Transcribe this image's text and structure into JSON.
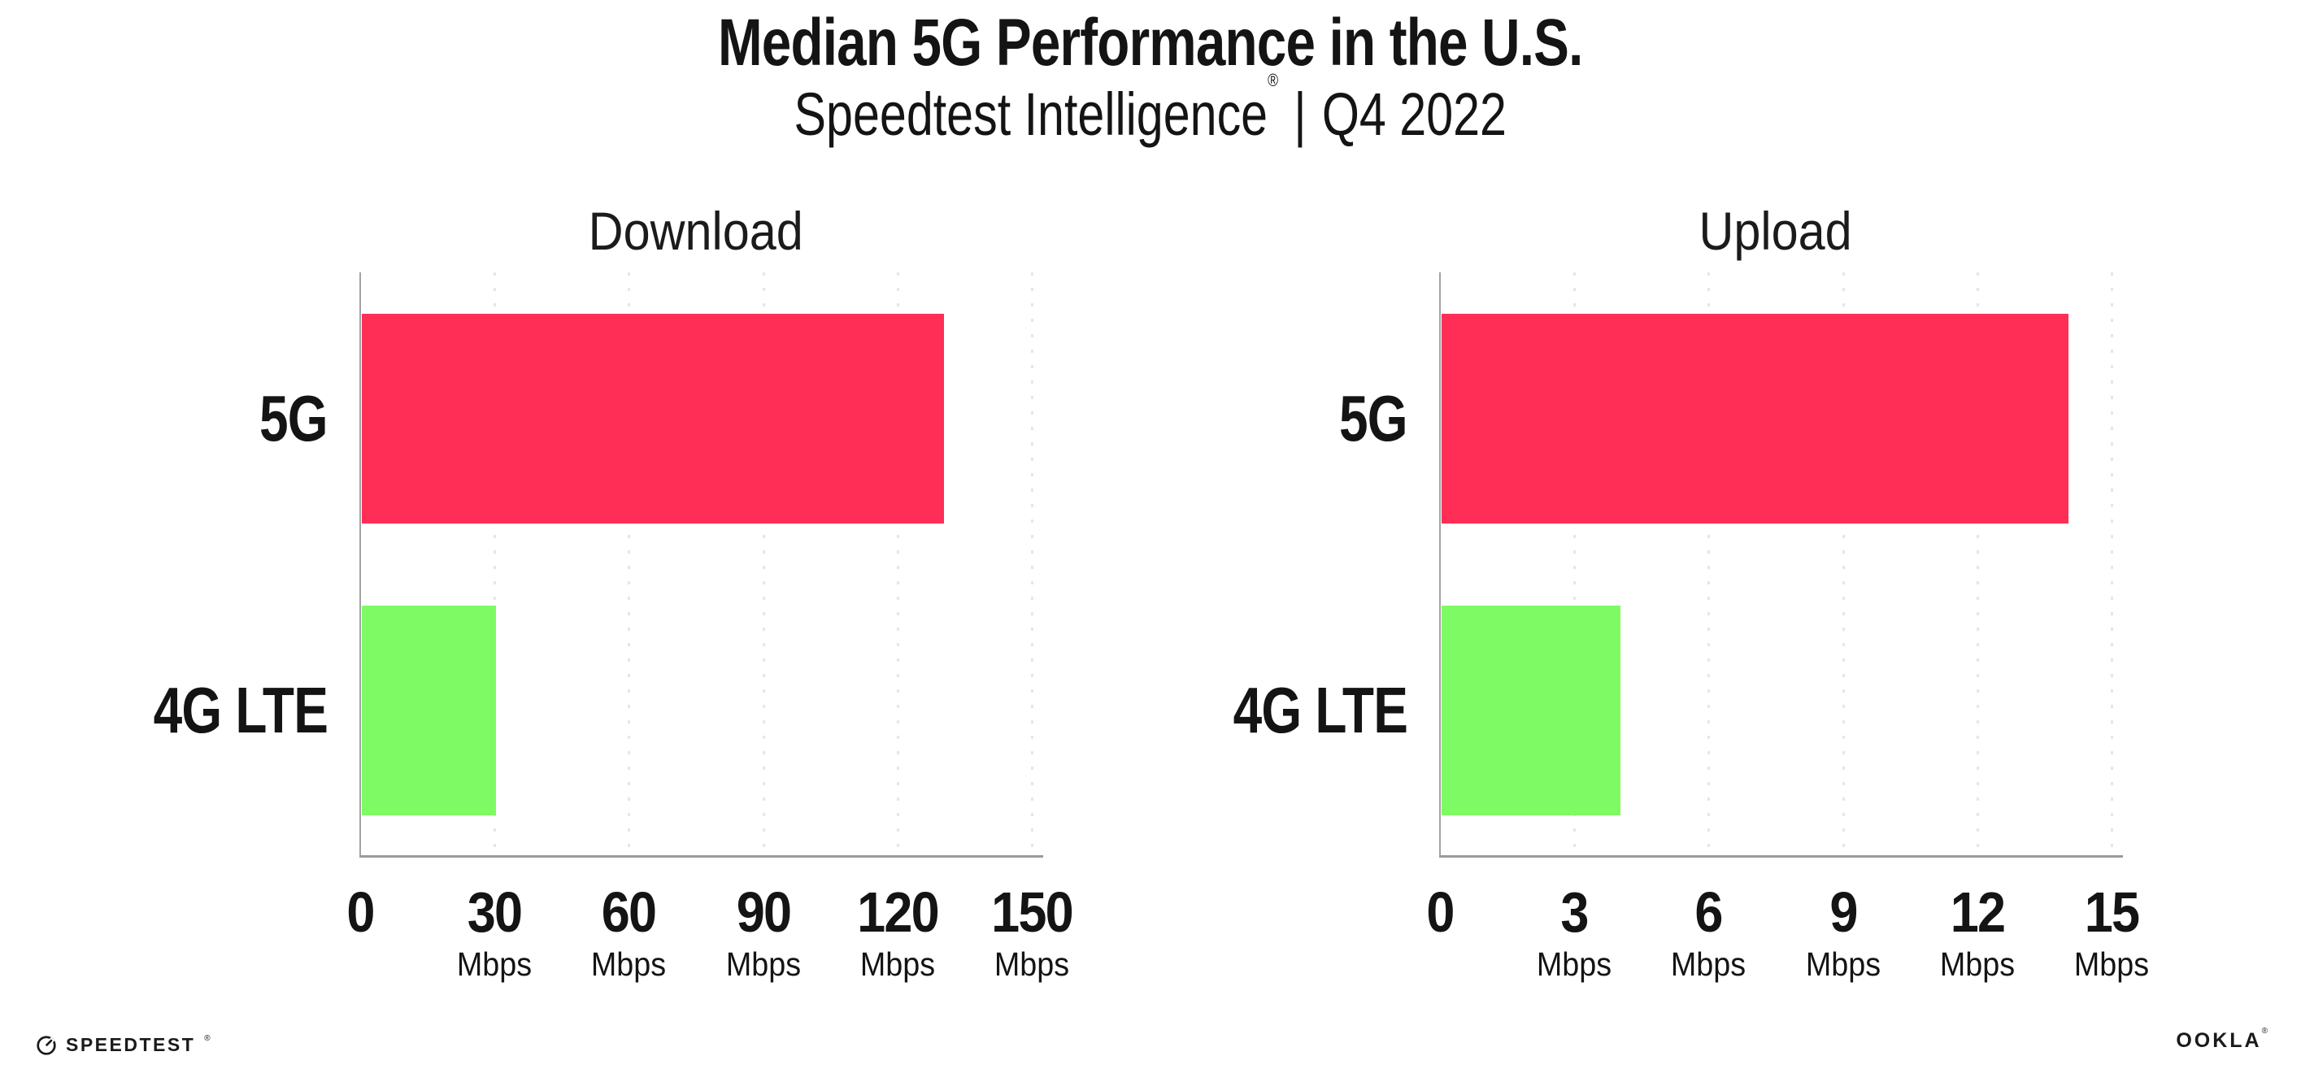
{
  "header": {
    "title": "Median 5G Performance in the U.S.",
    "subtitle_brand": "Speedtest Intelligence",
    "subtitle_reg": "®",
    "subtitle_sep": "|",
    "subtitle_period": "Q4 2022"
  },
  "chart_data": [
    {
      "type": "bar",
      "orientation": "horizontal",
      "title": "Download",
      "categories": [
        "5G",
        "4G LTE"
      ],
      "values": [
        130,
        30
      ],
      "unit": "Mbps",
      "xlim": [
        0,
        150
      ],
      "xticks": [
        0,
        30,
        60,
        90,
        120,
        150
      ],
      "bar_colors": [
        "#FF2E56",
        "#7EFB64"
      ],
      "grid": "vertical-dotted",
      "legend": "none"
    },
    {
      "type": "bar",
      "orientation": "horizontal",
      "title": "Upload",
      "categories": [
        "5G",
        "4G LTE"
      ],
      "values": [
        14,
        4
      ],
      "unit": "Mbps",
      "xlim": [
        0,
        15
      ],
      "xticks": [
        0,
        3,
        6,
        9,
        12,
        15
      ],
      "bar_colors": [
        "#FF2E56",
        "#7EFB64"
      ],
      "grid": "vertical-dotted",
      "legend": "none"
    }
  ],
  "footer": {
    "speedtest_icon": "gauge-icon",
    "speedtest_label": "SPEEDTEST",
    "speedtest_tm": "®",
    "ookla_label": "OOKLA",
    "ookla_reg": "®"
  },
  "colors": {
    "bar_5g": "#FF2E56",
    "bar_4g_lte": "#7EFB64",
    "gridline": "#E5E5EF",
    "axis": "#9B9B9B",
    "text": "#141414"
  }
}
